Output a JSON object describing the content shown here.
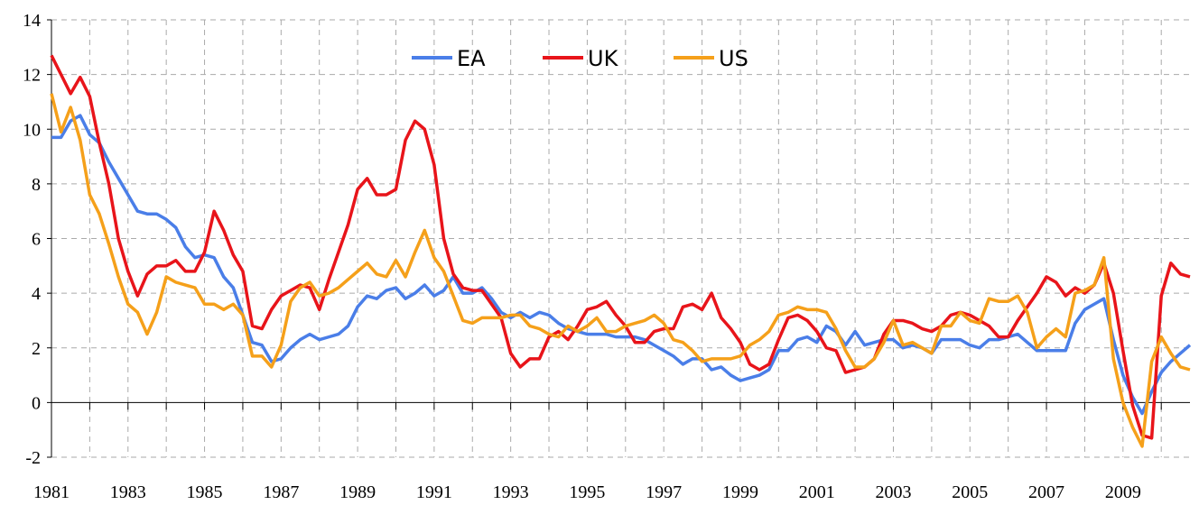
{
  "chart_data": {
    "type": "line",
    "x": [
      1981,
      1981.25,
      1981.5,
      1981.75,
      1982,
      1982.25,
      1982.5,
      1982.75,
      1983,
      1983.25,
      1983.5,
      1983.75,
      1984,
      1984.25,
      1984.5,
      1984.75,
      1985,
      1985.25,
      1985.5,
      1985.75,
      1986,
      1986.25,
      1986.5,
      1986.75,
      1987,
      1987.25,
      1987.5,
      1987.75,
      1988,
      1988.25,
      1988.5,
      1988.75,
      1989,
      1989.25,
      1989.5,
      1989.75,
      1990,
      1990.25,
      1990.5,
      1990.75,
      1991,
      1991.25,
      1991.5,
      1991.75,
      1992,
      1992.25,
      1992.5,
      1992.75,
      1993,
      1993.25,
      1993.5,
      1993.75,
      1994,
      1994.25,
      1994.5,
      1994.75,
      1995,
      1995.25,
      1995.5,
      1995.75,
      1996,
      1996.25,
      1996.5,
      1996.75,
      1997,
      1997.25,
      1997.5,
      1997.75,
      1998,
      1998.25,
      1998.5,
      1998.75,
      1999,
      1999.25,
      1999.5,
      1999.75,
      2000,
      2000.25,
      2000.5,
      2000.75,
      2001,
      2001.25,
      2001.5,
      2001.75,
      2002,
      2002.25,
      2002.5,
      2002.75,
      2003,
      2003.25,
      2003.5,
      2003.75,
      2004,
      2004.25,
      2004.5,
      2004.75,
      2005,
      2005.25,
      2005.5,
      2005.75,
      2006,
      2006.25,
      2006.5,
      2006.75,
      2007,
      2007.25,
      2007.5,
      2007.75,
      2008,
      2008.25,
      2008.5,
      2008.75,
      2009,
      2009.25,
      2009.5,
      2009.75,
      2010,
      2010.25,
      2010.5,
      2010.75
    ],
    "series": [
      {
        "name": "EA",
        "color": "#4a7ee8",
        "values": [
          9.7,
          9.7,
          10.3,
          10.5,
          9.8,
          9.5,
          8.8,
          8.2,
          7.6,
          7.0,
          6.9,
          6.9,
          6.7,
          6.4,
          5.7,
          5.3,
          5.4,
          5.3,
          4.6,
          4.2,
          3.2,
          2.2,
          2.1,
          1.5,
          1.6,
          2.0,
          2.3,
          2.5,
          2.3,
          2.4,
          2.5,
          2.8,
          3.5,
          3.9,
          3.8,
          4.1,
          4.2,
          3.8,
          4.0,
          4.3,
          3.9,
          4.1,
          4.6,
          4.0,
          4.0,
          4.2,
          3.8,
          3.3,
          3.1,
          3.3,
          3.1,
          3.3,
          3.2,
          2.9,
          2.7,
          2.6,
          2.5,
          2.5,
          2.5,
          2.4,
          2.4,
          2.4,
          2.3,
          2.1,
          1.9,
          1.7,
          1.4,
          1.6,
          1.6,
          1.2,
          1.3,
          1.0,
          0.8,
          0.9,
          1.0,
          1.2,
          1.9,
          1.9,
          2.3,
          2.4,
          2.2,
          2.8,
          2.6,
          2.1,
          2.6,
          2.1,
          2.2,
          2.3,
          2.3,
          2.0,
          2.1,
          2.0,
          1.8,
          2.3,
          2.3,
          2.3,
          2.1,
          2.0,
          2.3,
          2.3,
          2.4,
          2.5,
          2.2,
          1.9,
          1.9,
          1.9,
          1.9,
          2.9,
          3.4,
          3.6,
          3.8,
          2.3,
          1.0,
          0.2,
          -0.4,
          0.4,
          1.1,
          1.5,
          1.8,
          2.1
        ]
      },
      {
        "name": "UK",
        "color": "#e8141a",
        "values": [
          12.7,
          12.0,
          11.3,
          11.9,
          11.2,
          9.5,
          8.0,
          6.0,
          4.8,
          3.9,
          4.7,
          5.0,
          5.0,
          5.2,
          4.8,
          4.8,
          5.5,
          7.0,
          6.3,
          5.4,
          4.8,
          2.8,
          2.7,
          3.4,
          3.9,
          4.1,
          4.3,
          4.2,
          3.4,
          4.5,
          5.5,
          6.5,
          7.8,
          8.2,
          7.6,
          7.6,
          7.8,
          9.6,
          10.3,
          10.0,
          8.7,
          6.0,
          4.7,
          4.2,
          4.1,
          4.1,
          3.6,
          3.1,
          1.8,
          1.3,
          1.6,
          1.6,
          2.4,
          2.6,
          2.3,
          2.8,
          3.4,
          3.5,
          3.7,
          3.2,
          2.8,
          2.2,
          2.2,
          2.6,
          2.7,
          2.7,
          3.5,
          3.6,
          3.4,
          4.0,
          3.1,
          2.7,
          2.2,
          1.4,
          1.2,
          1.4,
          2.3,
          3.1,
          3.2,
          3.0,
          2.6,
          2.0,
          1.9,
          1.1,
          1.2,
          1.3,
          1.6,
          2.5,
          3.0,
          3.0,
          2.9,
          2.7,
          2.6,
          2.8,
          3.2,
          3.3,
          3.2,
          3.0,
          2.8,
          2.4,
          2.4,
          3.0,
          3.5,
          4.0,
          4.6,
          4.4,
          3.9,
          4.2,
          4.0,
          4.3,
          5.1,
          4.0,
          1.9,
          -0.1,
          -1.2,
          -1.3,
          3.9,
          5.1,
          4.7,
          4.6
        ]
      },
      {
        "name": "US",
        "color": "#f5a01a",
        "values": [
          11.3,
          9.9,
          10.8,
          9.6,
          7.6,
          6.9,
          5.8,
          4.6,
          3.6,
          3.3,
          2.5,
          3.3,
          4.6,
          4.4,
          4.3,
          4.2,
          3.6,
          3.6,
          3.4,
          3.6,
          3.2,
          1.7,
          1.7,
          1.3,
          2.1,
          3.7,
          4.2,
          4.4,
          3.9,
          4.0,
          4.2,
          4.5,
          4.8,
          5.1,
          4.7,
          4.6,
          5.2,
          4.6,
          5.5,
          6.3,
          5.3,
          4.8,
          3.9,
          3.0,
          2.9,
          3.1,
          3.1,
          3.1,
          3.2,
          3.2,
          2.8,
          2.7,
          2.5,
          2.4,
          2.8,
          2.6,
          2.8,
          3.1,
          2.6,
          2.6,
          2.8,
          2.9,
          3.0,
          3.2,
          2.9,
          2.3,
          2.2,
          1.9,
          1.5,
          1.6,
          1.6,
          1.6,
          1.7,
          2.1,
          2.3,
          2.6,
          3.2,
          3.3,
          3.5,
          3.4,
          3.4,
          3.3,
          2.7,
          1.9,
          1.3,
          1.3,
          1.6,
          2.2,
          3.0,
          2.1,
          2.2,
          2.0,
          1.8,
          2.8,
          2.8,
          3.3,
          3.0,
          2.9,
          3.8,
          3.7,
          3.7,
          3.9,
          3.3,
          2.0,
          2.4,
          2.7,
          2.4,
          4.0,
          4.1,
          4.3,
          5.3,
          1.6,
          0.0,
          -0.9,
          -1.6,
          1.5,
          2.4,
          1.8,
          1.3,
          1.2
        ]
      }
    ],
    "xlim": [
      1981,
      2010.75
    ],
    "xticks": [
      1981,
      1983,
      1985,
      1987,
      1989,
      1991,
      1993,
      1995,
      1997,
      1999,
      2001,
      2003,
      2005,
      2007,
      2009
    ],
    "xminorticks": [
      1982,
      1984,
      1986,
      1988,
      1990,
      1992,
      1994,
      1996,
      1998,
      2000,
      2002,
      2004,
      2006,
      2008,
      2010
    ],
    "ylim": [
      -2,
      14
    ],
    "yticks": [
      -2,
      0,
      2,
      4,
      6,
      8,
      10,
      12,
      14
    ],
    "grid": true,
    "legend": "top"
  }
}
